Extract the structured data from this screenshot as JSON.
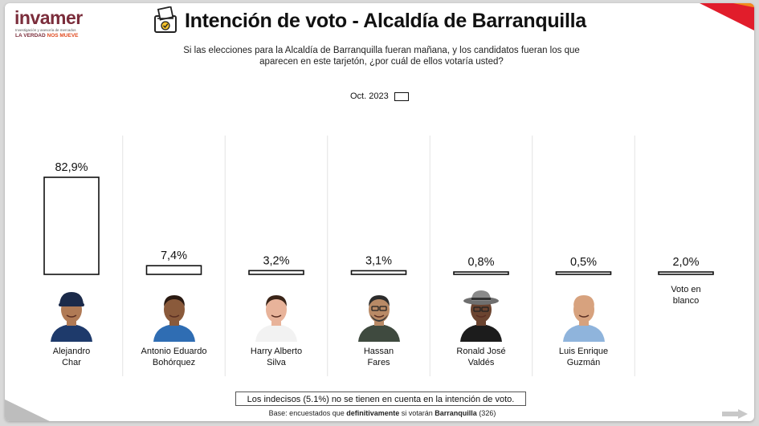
{
  "brand": {
    "name": "invamer",
    "subtitle": "Investigación y asesoría de mercados",
    "tagline_a": "LA VERDAD",
    "tagline_b": "NOS MUEVE"
  },
  "title": "Intención de voto - Alcaldía de Barranquilla",
  "question": "Si las elecciones para la Alcaldía de Barranquilla fueran mañana, y los candidatos fueran los que aparecen en este tarjetón, ¿por cuál de ellos votaría usted?",
  "legend": {
    "label": "Oct. 2023"
  },
  "chart_data": {
    "type": "bar",
    "categories": [
      "Alejandro Char",
      "Antonio Eduardo Bohórquez",
      "Harry Alberto Silva",
      "Hassan Fares",
      "Ronald José Valdés",
      "Luis Enrique Guzmán",
      "Voto en blanco"
    ],
    "series": [
      {
        "name": "Oct. 2023",
        "values": [
          82.9,
          7.4,
          3.2,
          3.1,
          0.8,
          0.5,
          2.0
        ]
      }
    ],
    "value_labels": [
      "82,9%",
      "7,4%",
      "3,2%",
      "3,1%",
      "0,8%",
      "0,5%",
      "2,0%"
    ],
    "unit": "%",
    "legend_position": "top-center",
    "bar_fill": "#ffffff",
    "bar_stroke": "#111111"
  },
  "candidates": [
    {
      "line1": "Alejandro",
      "line2": "Char",
      "photo": "avatar-cap",
      "skin": "#b07a55",
      "hair": "#1b2a4a",
      "shirt": "#1e3a6b"
    },
    {
      "line1": "Antonio Eduardo",
      "line2": "Bohórquez",
      "photo": "avatar",
      "skin": "#8a5a3b",
      "hair": "#2a1a12",
      "shirt": "#2f6db3"
    },
    {
      "line1": "Harry Alberto",
      "line2": "Silva",
      "photo": "avatar",
      "skin": "#e8b39a",
      "hair": "#3a2418",
      "shirt": "#f2f2f2"
    },
    {
      "line1": "Hassan",
      "line2": "Fares",
      "photo": "avatar-glasses",
      "skin": "#b98a66",
      "hair": "#2c2c2c",
      "shirt": "#3f4a3f"
    },
    {
      "line1": "Ronald José",
      "line2": "Valdés",
      "photo": "avatar-hat",
      "skin": "#6b4430",
      "hair": "#777777",
      "shirt": "#1c1c1c"
    },
    {
      "line1": "Luis Enrique",
      "line2": "Guzmán",
      "photo": "avatar",
      "skin": "#d7a27e",
      "hair": "#d7a27e",
      "shirt": "#8fb4dc"
    },
    {
      "line1": "Voto en",
      "line2": "blanco",
      "photo": "",
      "skin": "",
      "hair": "",
      "shirt": ""
    }
  ],
  "footnote": "Los indecisos (5.1%) no se tienen en cuenta en la intención de voto.",
  "base": {
    "prefix": "Base: encuestados que ",
    "bold1": "definitivamente",
    "middle": " si votarán ",
    "bold2": "Barranquilla",
    "suffix": " (326)"
  },
  "colors": {
    "brand": "#7b2d3b",
    "accent": "#e04a1f",
    "corner": "#e11d2b"
  }
}
